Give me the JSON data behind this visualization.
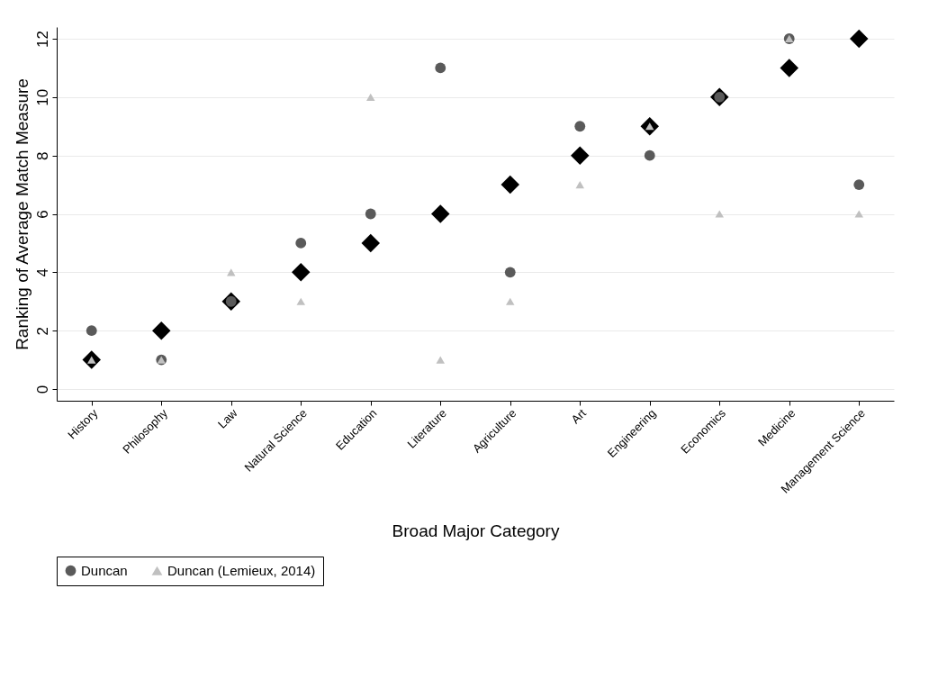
{
  "chart_data": {
    "type": "scatter",
    "xlabel": "Broad Major Category",
    "ylabel": "Ranking of Average Match Measure",
    "categories": [
      "History",
      "Philosophy",
      "Law",
      "Natural Science",
      "Education",
      "Literature",
      "Agriculture",
      "Art",
      "Engineering",
      "Economics",
      "Medicine",
      "Management Science"
    ],
    "series": [
      {
        "color": "#000000",
        "marker": "diamond",
        "values": [
          1,
          2,
          3,
          4,
          5,
          6,
          7,
          8,
          9,
          10,
          11,
          12
        ]
      },
      {
        "name": "Duncan",
        "color": "#5a5a5a",
        "marker": "circle",
        "values": [
          2,
          1,
          3,
          5,
          6,
          11,
          4,
          9,
          8,
          10,
          12,
          7
        ]
      },
      {
        "name": "Duncan (Lemieux, 2014)",
        "color": "#c0c0c0",
        "marker": "triangle",
        "values": [
          1,
          1,
          4,
          3,
          10,
          1,
          3,
          7,
          9,
          6,
          12,
          6
        ]
      }
    ],
    "ylim": [
      -0.4,
      12.4
    ],
    "yticks": [
      0,
      2,
      4,
      6,
      8,
      10,
      12
    ],
    "grid": "y",
    "legend": "bottom"
  }
}
